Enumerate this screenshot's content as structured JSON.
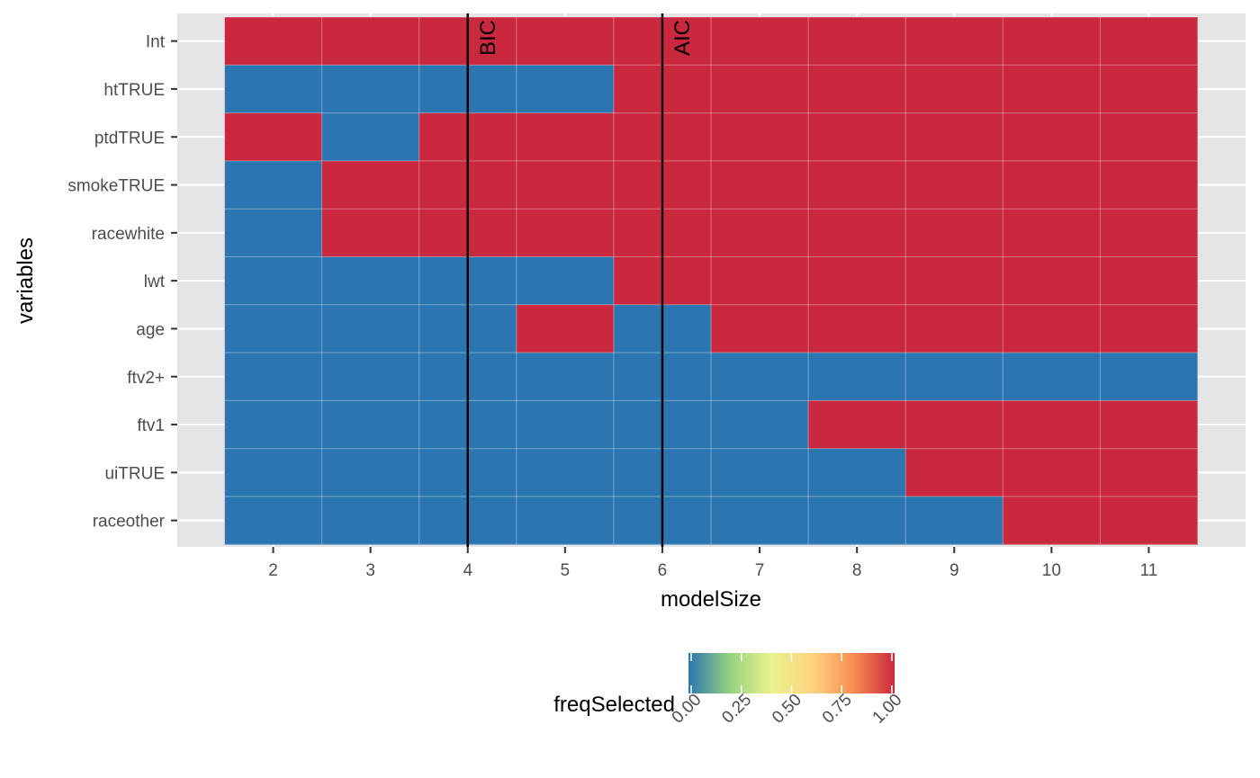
{
  "chart_data": {
    "type": "heatmap",
    "xlabel": "modelSize",
    "ylabel": "variables",
    "x": [
      2,
      3,
      4,
      5,
      6,
      7,
      8,
      9,
      10,
      11
    ],
    "y": [
      "Int",
      "htTRUE",
      "ptdTRUE",
      "smokeTRUE",
      "racewhite",
      "lwt",
      "age",
      "ftv2+",
      "ftv1",
      "uiTRUE",
      "raceother"
    ],
    "z": [
      [
        1,
        1,
        1,
        1,
        1,
        1,
        1,
        1,
        1,
        1
      ],
      [
        0,
        0,
        0,
        0,
        1,
        1,
        1,
        1,
        1,
        1
      ],
      [
        1,
        0,
        1,
        1,
        1,
        1,
        1,
        1,
        1,
        1
      ],
      [
        0,
        1,
        1,
        1,
        1,
        1,
        1,
        1,
        1,
        1
      ],
      [
        0,
        1,
        1,
        1,
        1,
        1,
        1,
        1,
        1,
        1
      ],
      [
        0,
        0,
        0,
        0,
        1,
        1,
        1,
        1,
        1,
        1
      ],
      [
        0,
        0,
        0,
        1,
        0,
        1,
        1,
        1,
        1,
        1
      ],
      [
        0,
        0,
        0,
        0,
        0,
        0,
        0,
        0,
        0,
        0
      ],
      [
        0,
        0,
        0,
        0,
        0,
        0,
        1,
        1,
        1,
        1
      ],
      [
        0,
        0,
        0,
        0,
        0,
        0,
        0,
        1,
        1,
        1
      ],
      [
        0,
        0,
        0,
        0,
        0,
        0,
        0,
        0,
        1,
        1
      ]
    ],
    "x_tick_labels": [
      "2",
      "3",
      "4",
      "5",
      "6",
      "7",
      "8",
      "9",
      "10",
      "11"
    ],
    "reference_lines": [
      {
        "label": "BIC",
        "x": 4
      },
      {
        "label": "AIC",
        "x": 6
      }
    ],
    "legend": {
      "title": "freqSelected",
      "placement": "bottom",
      "range": [
        0,
        1
      ],
      "tick_labels": [
        "0.00",
        "0.25",
        "0.50",
        "0.75",
        "1.00"
      ],
      "tick_values": [
        0,
        0.25,
        0.5,
        0.75,
        1
      ],
      "gradient_colors": [
        "#2b76b0",
        "#94d27f",
        "#eaf28c",
        "#fdd480",
        "#f98d52",
        "#c9283e"
      ]
    },
    "colors": {
      "low": "#2b76b0",
      "high": "#c9283e",
      "panel_background": "#e5e5e5",
      "grid": "#ffffff"
    },
    "grid": true
  }
}
